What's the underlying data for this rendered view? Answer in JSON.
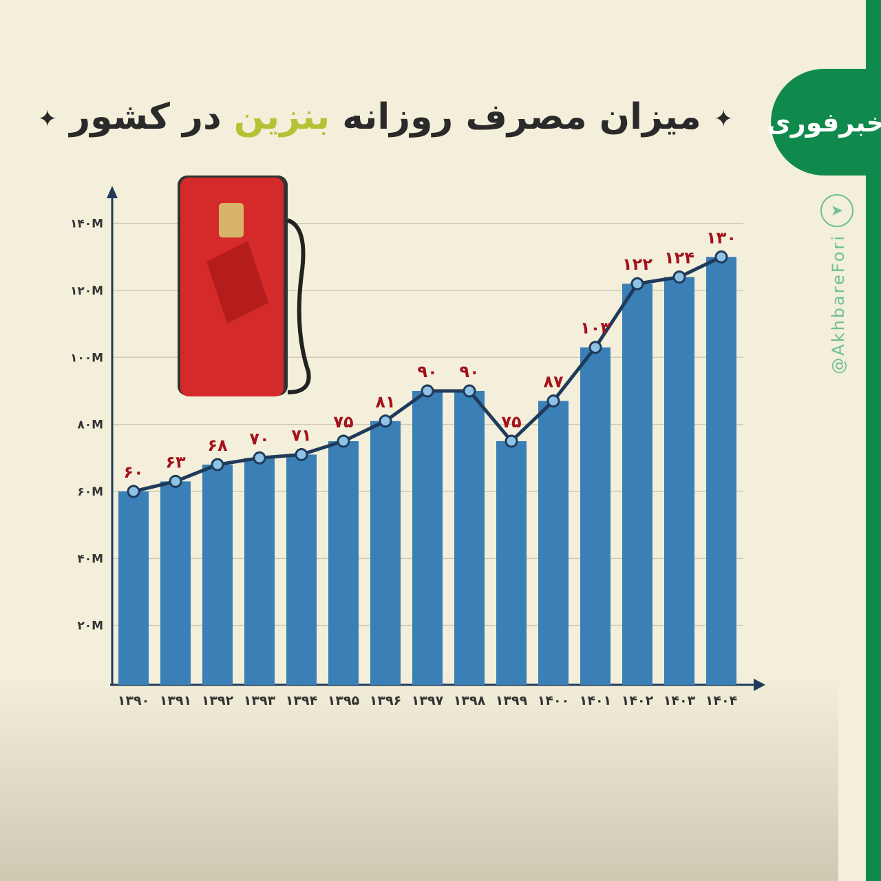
{
  "title": {
    "before": "میزان مصرف روزانه ",
    "highlight": "بنزین",
    "after": " در کشور",
    "star": "✦"
  },
  "brand": {
    "logo": "خبرفوری",
    "handle": "@AkhbareFori",
    "telegram_icon": "paper-plane-icon",
    "color": "#0f8a4c"
  },
  "chart_data": {
    "type": "bar",
    "categories": [
      "۱۳۹۰",
      "۱۳۹۱",
      "۱۳۹۲",
      "۱۳۹۳",
      "۱۳۹۴",
      "۱۳۹۵",
      "۱۳۹۶",
      "۱۳۹۷",
      "۱۳۹۸",
      "۱۳۹۹",
      "۱۴۰۰",
      "۱۴۰۱",
      "۱۴۰۲",
      "۱۴۰۳",
      "۱۴۰۴"
    ],
    "values": [
      60,
      63,
      68,
      70,
      71,
      75,
      81,
      90,
      90,
      75,
      87,
      103,
      122,
      124,
      130
    ],
    "data_labels": [
      "۶۰",
      "۶۳",
      "۶۸",
      "۷۰",
      "۷۱",
      "۷۵",
      "۸۱",
      "۹۰",
      "۹۰",
      "۷۵",
      "۸۷",
      "۱۰۳",
      "۱۲۲",
      "۱۲۴",
      "۱۳۰"
    ],
    "overlay_line": true,
    "yticks": [
      20,
      40,
      60,
      80,
      100,
      120,
      140
    ],
    "ytick_labels": [
      "۲۰M",
      "۴۰M",
      "۶۰M",
      "۸۰M",
      "۱۰۰M",
      "۱۲۰M",
      "۱۴۰M"
    ],
    "ylim": [
      0,
      150
    ],
    "grid": true,
    "colors": {
      "bar": "#3a7fb5",
      "line": "#1f3a5a",
      "marker": "#8fc3e6",
      "label": "#a3121b"
    }
  }
}
